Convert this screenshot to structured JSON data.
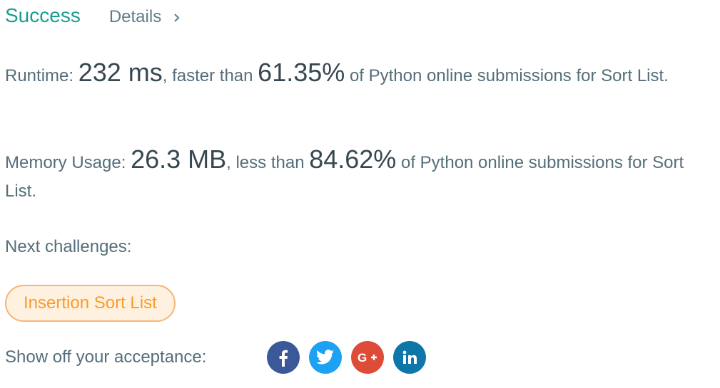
{
  "header": {
    "status": "Success",
    "details_label": "Details"
  },
  "runtime": {
    "label": "Runtime: ",
    "value": "232 ms",
    "mid_text": ", faster than ",
    "percent": "61.35%",
    "suffix": " of Python online submissions for Sort List."
  },
  "memory": {
    "label": "Memory Usage: ",
    "value": "26.3 MB",
    "mid_text": ", less than ",
    "percent": "84.62%",
    "suffix": " of Python online submissions for Sort List."
  },
  "next": {
    "label": "Next challenges:",
    "challenges": [
      "Insertion Sort List"
    ]
  },
  "share": {
    "label": "Show off your acceptance:",
    "icons": [
      "facebook-icon",
      "twitter-icon",
      "google-plus-icon",
      "linkedin-icon"
    ]
  },
  "colors": {
    "success": "#1a9e8f",
    "challenge_text": "#fb9b2a",
    "challenge_bg": "#fff1e0",
    "facebook": "#3b5998",
    "twitter": "#1da1f2",
    "google_plus": "#dd4b39",
    "linkedin": "#0e76a8"
  }
}
